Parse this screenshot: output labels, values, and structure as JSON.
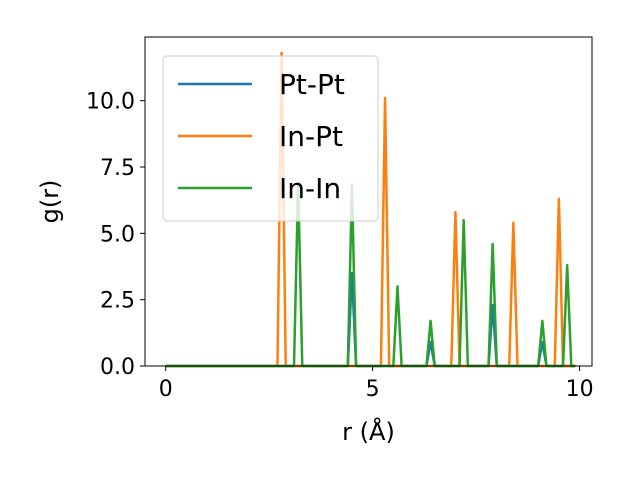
{
  "chart_data": {
    "type": "line",
    "xlabel": "r (Å)",
    "ylabel": "g(r)",
    "xlim": [
      -0.5,
      10.3
    ],
    "ylim": [
      0,
      12.4
    ],
    "xticks": [
      0,
      5,
      10
    ],
    "xtick_labels": [
      "0",
      "5",
      "10"
    ],
    "yticks": [
      0.0,
      2.5,
      5.0,
      7.5,
      10.0
    ],
    "ytick_labels": [
      "0.0",
      "2.5",
      "5.0",
      "7.5",
      "10.0"
    ],
    "grid": false,
    "legend_position": "top-left",
    "series": [
      {
        "name": "Pt-Pt",
        "color": "#1f77b4",
        "x": [
          0,
          2.7,
          2.8,
          2.9,
          3.1,
          3.2,
          3.3,
          4.4,
          4.5,
          4.6,
          5.2,
          5.3,
          5.4,
          5.5,
          5.6,
          5.7,
          6.3,
          6.4,
          6.5,
          6.9,
          7.0,
          7.1,
          7.2,
          7.3,
          7.8,
          7.9,
          8.0,
          8.3,
          8.4,
          8.5,
          9.0,
          9.1,
          9.2,
          9.4,
          9.5,
          9.6,
          9.7,
          9.8,
          9.9
        ],
        "y": [
          0,
          0,
          0,
          0,
          0,
          0,
          0,
          0,
          3.5,
          0,
          0,
          0,
          0,
          0,
          0,
          0,
          0,
          0.9,
          0,
          0,
          0,
          0,
          0,
          0,
          0,
          2.3,
          0,
          0,
          0,
          0,
          0,
          0.9,
          0,
          0,
          0,
          0,
          0,
          0,
          0
        ]
      },
      {
        "name": "In-Pt",
        "color": "#ff7f0e",
        "x": [
          0,
          2.7,
          2.8,
          2.9,
          5.2,
          5.3,
          5.4,
          6.9,
          7.0,
          7.1,
          8.3,
          8.4,
          8.5,
          9.4,
          9.5,
          9.6,
          9.9
        ],
        "y": [
          0,
          0,
          11.8,
          0,
          0,
          10.1,
          0,
          0,
          5.8,
          0,
          0,
          5.4,
          0,
          0,
          6.3,
          0,
          0
        ]
      },
      {
        "name": "In-In",
        "color": "#2ca02c",
        "x": [
          0,
          3.1,
          3.2,
          3.3,
          4.4,
          4.5,
          4.6,
          5.5,
          5.6,
          5.7,
          6.3,
          6.4,
          6.5,
          7.1,
          7.2,
          7.3,
          7.8,
          7.9,
          8.0,
          9.0,
          9.1,
          9.2,
          9.6,
          9.7,
          9.8,
          9.9
        ],
        "y": [
          0,
          0,
          6.9,
          0,
          0,
          6.8,
          0,
          0,
          3.0,
          0,
          0,
          1.7,
          0,
          0,
          5.5,
          0,
          0,
          4.6,
          0,
          0,
          1.7,
          0,
          0,
          3.8,
          0,
          0
        ]
      }
    ]
  }
}
